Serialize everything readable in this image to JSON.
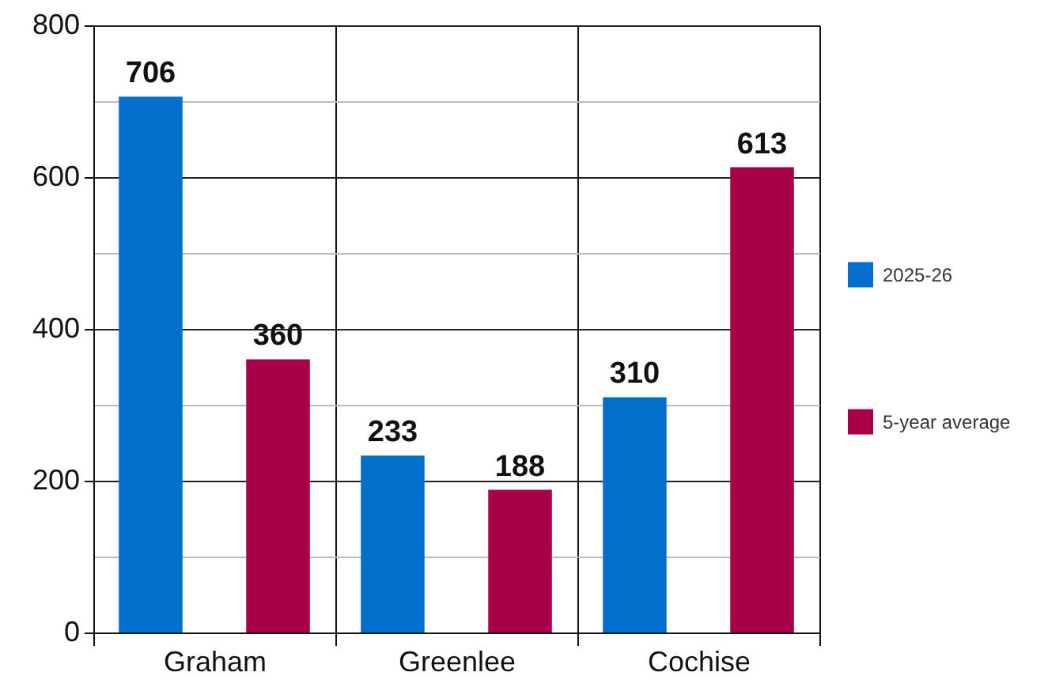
{
  "chart_data": {
    "type": "bar",
    "categories": [
      "Graham",
      "Greenlee",
      "Cochise"
    ],
    "series": [
      {
        "name": "2025-26",
        "color": "#0070cc",
        "values": [
          706,
          233,
          310
        ]
      },
      {
        "name": "5-year average",
        "color": "#a80048",
        "values": [
          360,
          188,
          613
        ]
      }
    ],
    "ylim": [
      0,
      800
    ],
    "yticks": [
      0,
      {
        "value": 100,
        "label": null
      },
      200,
      {
        "value": 300,
        "label": null
      },
      400,
      {
        "value": 500,
        "label": null
      },
      600,
      {
        "value": 700,
        "label": null
      },
      800
    ],
    "grid": true,
    "legend": "right",
    "data_labels": true
  }
}
